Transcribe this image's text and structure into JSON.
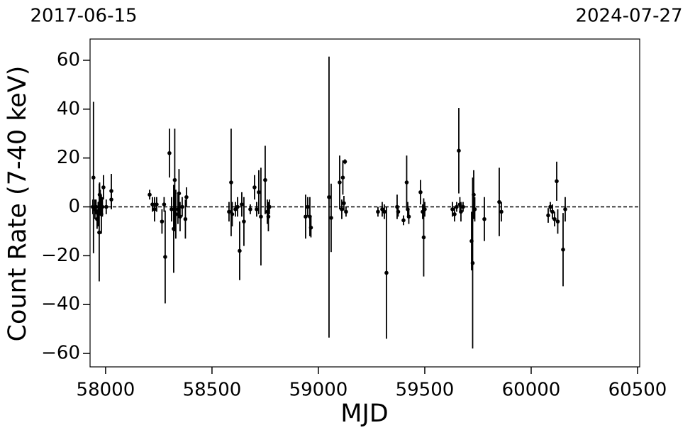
{
  "chart_data": {
    "type": "errorbar-scatter",
    "annotations": [
      "2017-06-15",
      "2024-07-27"
    ],
    "x_label": "MJD",
    "y_label": "Count Rate (7-40 keV)",
    "xlim": [
      57927,
      60510
    ],
    "ylim": [
      -65.5,
      68.7
    ],
    "xticks": [
      58000,
      58500,
      59000,
      59500,
      60000,
      60500
    ],
    "yticks": [
      {
        "value": -60,
        "label": "−60"
      },
      {
        "value": -40,
        "label": "−40"
      },
      {
        "value": -20,
        "label": "−20"
      },
      0,
      20,
      40,
      60
    ],
    "reference_line": 0,
    "series": [
      {
        "color": "#000000",
        "x": [
          57943,
          57940,
          57950,
          57955,
          57960,
          57965,
          57970,
          57972,
          57975,
          57980,
          57985,
          57990,
          58003,
          58027,
          58027,
          58207,
          58220,
          58230,
          58240,
          58265,
          58275,
          58280,
          58300,
          58310,
          58320,
          58325,
          58330,
          58340,
          58345,
          58350,
          58360,
          58375,
          58380,
          58580,
          58590,
          58595,
          58610,
          58620,
          58630,
          58640,
          58650,
          58680,
          58700,
          58710,
          58720,
          58730,
          58750,
          58760,
          58765,
          58770,
          58940,
          58950,
          58960,
          58965,
          59050,
          59060,
          59100,
          59110,
          59115,
          59120,
          59125,
          59130,
          59280,
          59300,
          59310,
          59320,
          59370,
          59375,
          59400,
          59415,
          59420,
          59425,
          59480,
          59490,
          59495,
          59500,
          59630,
          59640,
          59650,
          59660,
          59665,
          59670,
          59680,
          59720,
          59725,
          59730,
          59735,
          59780,
          59850,
          59860,
          60080,
          60090,
          60100,
          60110,
          60120,
          60125,
          60150,
          60160
        ],
        "values": [
          12,
          0,
          -1,
          0,
          -5,
          -3,
          -10.5,
          5,
          2,
          -3,
          0,
          8,
          0,
          6.5,
          3,
          5,
          1,
          -1,
          1,
          -6,
          1,
          -20.5,
          22,
          -1,
          -9,
          11,
          -3,
          -1,
          5.5,
          -4,
          0,
          -5,
          4,
          -2,
          10,
          -3,
          -1,
          0,
          -18,
          1,
          -6,
          -1,
          8,
          -1,
          6,
          -4,
          11,
          -2,
          -4,
          0,
          -4,
          0,
          -4,
          -8.5,
          4,
          -4.5,
          10,
          -1,
          12,
          1.5,
          18.5,
          -2,
          -2,
          -1,
          -2,
          -27,
          0,
          -2,
          -5.5,
          10,
          -1,
          -4,
          6,
          -2,
          -12.5,
          -1,
          -1,
          -3,
          0,
          23,
          1,
          -2,
          0,
          -14,
          -23,
          5,
          -1,
          -5,
          2,
          -2,
          -3.5,
          0,
          -2,
          -5,
          10.5,
          -6,
          -17.5,
          -1
        ],
        "errors": [
          31,
          3,
          4,
          3,
          4,
          5,
          20,
          5,
          5,
          8,
          4,
          5,
          3,
          7,
          4,
          2,
          3,
          5,
          3,
          5,
          3,
          19,
          10,
          5,
          18,
          21,
          10,
          6,
          10,
          6,
          4,
          8,
          4,
          4,
          22,
          5,
          3,
          4,
          12,
          5,
          10,
          2,
          5,
          3,
          9,
          20,
          14,
          5,
          6,
          3,
          9,
          4,
          8,
          4,
          57.5,
          14,
          11,
          4,
          7,
          3,
          1,
          2,
          2,
          3,
          3,
          27,
          5,
          2,
          2,
          11,
          3,
          3,
          5,
          3,
          16,
          3,
          3,
          3,
          2,
          17.5,
          3,
          4,
          2,
          12,
          35,
          10,
          5,
          9,
          14,
          4,
          3,
          2,
          3,
          3,
          8,
          5,
          15,
          5
        ]
      }
    ]
  }
}
